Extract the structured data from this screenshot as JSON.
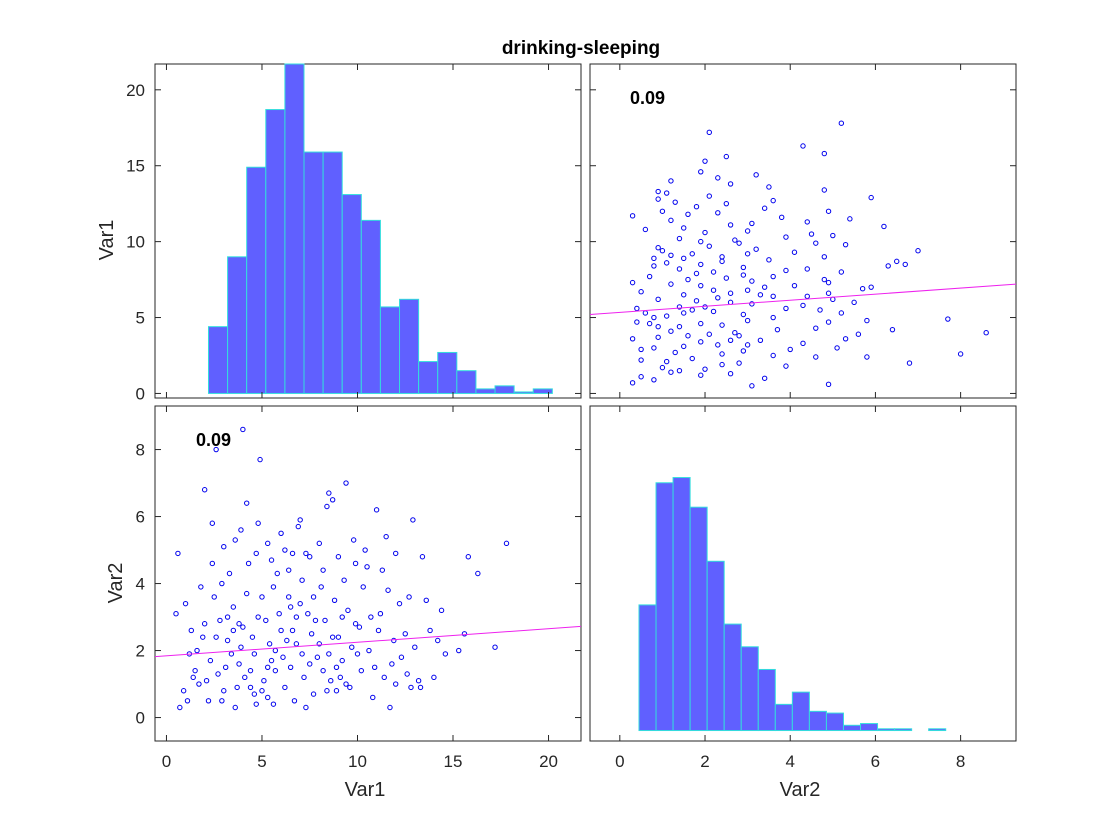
{
  "colors": {
    "bar_fill": "#6060ff",
    "bar_edge": "#33dddd",
    "point": "#0000ee",
    "fit_line": "#ee22ee",
    "axes": "#262626"
  },
  "chart_data": {
    "type": "scatter-matrix",
    "title": "drinking-sleeping",
    "variables": [
      "Var1",
      "Var2"
    ],
    "correlation_label": "0.09",
    "var1_axis": {
      "ticks": [
        0,
        5,
        10,
        15,
        20
      ],
      "range": [
        -0.6,
        21.7
      ],
      "label": "Var1"
    },
    "var2_axis": {
      "ticks": [
        0,
        2,
        4,
        6,
        8
      ],
      "range": [
        -0.7,
        9.3
      ],
      "label": "Var2"
    },
    "histogram_var1": {
      "bin_start": 2.2,
      "bin_width": 1.0,
      "counts": [
        4.4,
        9.0,
        14.9,
        18.7,
        21.8,
        15.9,
        15.9,
        13.1,
        11.4,
        5.7,
        6.2,
        2.1,
        2.7,
        1.5,
        0.3,
        0.5,
        0.1,
        0.3
      ],
      "y_range": [
        -0.3,
        21.7
      ],
      "y_ticks": [
        0,
        5,
        10,
        15,
        20
      ]
    },
    "histogram_var2": {
      "bin_start": 0.45,
      "bin_width": 0.4,
      "counts": [
        3.6,
        7.1,
        7.25,
        6.4,
        4.85,
        3.05,
        2.4,
        1.75,
        0.75,
        1.1,
        0.55,
        0.5,
        0.15,
        0.2,
        0.05,
        0.05,
        0.0,
        0.05
      ],
      "y_range": [
        -0.3,
        9.3
      ]
    },
    "fit_line_var1_vs_var2": {
      "x1": -0.7,
      "y1": 5.2,
      "x2": 9.3,
      "y2": 7.2
    },
    "fit_line_var2_vs_var1": {
      "x1": -0.6,
      "y1": 1.82,
      "x2": 21.7,
      "y2": 2.72
    },
    "points": [
      [
        17.8,
        5.2
      ],
      [
        15.8,
        4.8
      ],
      [
        16.3,
        4.3
      ],
      [
        15.6,
        2.5
      ],
      [
        15.3,
        2.0
      ],
      [
        17.2,
        2.1
      ],
      [
        14.4,
        3.2
      ],
      [
        14.0,
        1.2
      ],
      [
        13.4,
        4.8
      ],
      [
        13.8,
        2.6
      ],
      [
        12.9,
        5.9
      ],
      [
        12.0,
        4.9
      ],
      [
        11.6,
        3.8
      ],
      [
        11.2,
        3.1
      ],
      [
        12.5,
        2.5
      ],
      [
        11.8,
        1.6
      ],
      [
        11.0,
        6.2
      ],
      [
        11.5,
        5.4
      ],
      [
        9.4,
        7.0
      ],
      [
        8.5,
        6.7
      ],
      [
        8.7,
        6.5
      ],
      [
        8.4,
        6.3
      ],
      [
        9.9,
        4.6
      ],
      [
        10.3,
        3.9
      ],
      [
        10.6,
        2.0
      ],
      [
        11.4,
        1.2
      ],
      [
        12.0,
        1.0
      ],
      [
        12.8,
        0.9
      ],
      [
        13.2,
        1.1
      ],
      [
        12.7,
        3.6
      ],
      [
        10.8,
        0.6
      ],
      [
        9.6,
        0.9
      ],
      [
        9.9,
        2.8
      ],
      [
        9.2,
        1.7
      ],
      [
        8.9,
        0.8
      ],
      [
        8.2,
        1.4
      ],
      [
        8.0,
        2.2
      ],
      [
        7.4,
        3.1
      ],
      [
        7.1,
        4.1
      ],
      [
        6.6,
        4.9
      ],
      [
        6.0,
        5.5
      ],
      [
        5.3,
        5.2
      ],
      [
        4.8,
        5.8
      ],
      [
        4.2,
        6.4
      ],
      [
        3.6,
        5.3
      ],
      [
        2.4,
        5.8
      ],
      [
        2.0,
        6.8
      ],
      [
        2.6,
        8.0
      ],
      [
        4.9,
        7.7
      ],
      [
        4.0,
        8.6
      ],
      [
        6.4,
        3.6
      ],
      [
        6.8,
        2.2
      ],
      [
        5.7,
        1.4
      ],
      [
        5.3,
        0.6
      ],
      [
        4.4,
        0.9
      ],
      [
        3.8,
        1.6
      ],
      [
        3.2,
        2.3
      ],
      [
        2.7,
        1.3
      ],
      [
        2.2,
        0.5
      ],
      [
        1.7,
        1.0
      ],
      [
        1.2,
        1.9
      ],
      [
        1.0,
        3.4
      ],
      [
        0.6,
        4.9
      ],
      [
        0.5,
        3.1
      ],
      [
        0.7,
        0.3
      ],
      [
        1.1,
        0.5
      ],
      [
        1.5,
        1.4
      ],
      [
        2.0,
        2.8
      ],
      [
        2.9,
        4.0
      ],
      [
        3.5,
        3.3
      ],
      [
        4.0,
        2.7
      ],
      [
        4.6,
        1.9
      ],
      [
        5.1,
        1.1
      ],
      [
        5.6,
        0.4
      ],
      [
        6.1,
        1.8
      ],
      [
        6.6,
        2.6
      ],
      [
        7.2,
        1.2
      ],
      [
        7.7,
        0.7
      ],
      [
        8.3,
        2.9
      ],
      [
        8.8,
        3.5
      ],
      [
        9.3,
        4.1
      ],
      [
        9.8,
        5.3
      ],
      [
        10.2,
        1.4
      ],
      [
        10.7,
        3.0
      ],
      [
        7.5,
        4.8
      ],
      [
        6.9,
        5.7
      ],
      [
        5.8,
        4.3
      ],
      [
        5.0,
        3.6
      ],
      [
        4.3,
        4.6
      ],
      [
        3.3,
        4.3
      ],
      [
        2.5,
        3.6
      ],
      [
        1.9,
        2.4
      ],
      [
        1.4,
        1.2
      ],
      [
        0.9,
        0.8
      ],
      [
        3.0,
        0.8
      ],
      [
        3.6,
        0.3
      ],
      [
        4.1,
        1.2
      ],
      [
        4.7,
        0.4
      ],
      [
        5.4,
        2.2
      ],
      [
        6.2,
        0.9
      ],
      [
        6.7,
        0.5
      ],
      [
        7.3,
        0.3
      ],
      [
        7.9,
        1.8
      ],
      [
        8.6,
        1.1
      ],
      [
        9.0,
        2.4
      ],
      [
        9.5,
        3.2
      ],
      [
        10.0,
        1.9
      ],
      [
        10.5,
        4.5
      ],
      [
        11.1,
        2.6
      ],
      [
        11.7,
        0.3
      ],
      [
        12.3,
        1.8
      ],
      [
        13.0,
        2.1
      ],
      [
        3.4,
        1.9
      ],
      [
        3.9,
        2.1
      ],
      [
        4.5,
        2.4
      ],
      [
        5.2,
        2.9
      ],
      [
        5.9,
        3.1
      ],
      [
        6.5,
        1.5
      ],
      [
        7.0,
        3.4
      ],
      [
        7.6,
        2.5
      ],
      [
        8.1,
        3.9
      ],
      [
        8.9,
        1.5
      ],
      [
        2.8,
        2.9
      ],
      [
        2.3,
        1.7
      ],
      [
        1.6,
        2.0
      ],
      [
        3.1,
        1.5
      ],
      [
        3.7,
        0.9
      ],
      [
        4.4,
        1.4
      ],
      [
        5.0,
        0.8
      ],
      [
        5.5,
        1.7
      ],
      [
        6.3,
        2.3
      ],
      [
        7.1,
        1.9
      ],
      [
        7.8,
        2.9
      ],
      [
        8.4,
        0.8
      ],
      [
        9.1,
        1.2
      ],
      [
        9.7,
        2.1
      ],
      [
        4.8,
        3.0
      ],
      [
        5.6,
        3.9
      ],
      [
        6.4,
        4.4
      ],
      [
        7.3,
        4.9
      ],
      [
        8.0,
        5.2
      ],
      [
        3.2,
        3.0
      ],
      [
        2.6,
        2.4
      ],
      [
        4.2,
        3.7
      ],
      [
        3.5,
        2.6
      ],
      [
        5.3,
        1.5
      ],
      [
        6.0,
        2.6
      ],
      [
        6.8,
        3.0
      ],
      [
        7.5,
        1.6
      ],
      [
        8.7,
        2.4
      ],
      [
        9.4,
        1.0
      ],
      [
        10.1,
        2.7
      ],
      [
        10.9,
        1.5
      ],
      [
        11.9,
        2.3
      ],
      [
        12.6,
        1.3
      ],
      [
        13.3,
        0.9
      ],
      [
        14.6,
        1.9
      ],
      [
        2.1,
        1.1
      ],
      [
        2.9,
        0.5
      ],
      [
        3.8,
        2.8
      ],
      [
        4.6,
        0.7
      ],
      [
        5.7,
        2.0
      ],
      [
        6.5,
        3.3
      ],
      [
        7.7,
        3.6
      ],
      [
        8.5,
        1.9
      ],
      [
        9.2,
        3.0
      ],
      [
        1.3,
        2.6
      ],
      [
        1.8,
        3.9
      ],
      [
        2.4,
        4.6
      ],
      [
        3.0,
        5.1
      ],
      [
        3.9,
        5.6
      ],
      [
        4.7,
        4.9
      ],
      [
        5.5,
        4.7
      ],
      [
        6.2,
        5.0
      ],
      [
        7.0,
        5.9
      ],
      [
        8.2,
        4.4
      ],
      [
        9.0,
        4.8
      ],
      [
        10.4,
        5.0
      ],
      [
        11.3,
        4.4
      ],
      [
        12.2,
        3.4
      ],
      [
        13.6,
        3.5
      ],
      [
        14.2,
        2.3
      ]
    ]
  }
}
